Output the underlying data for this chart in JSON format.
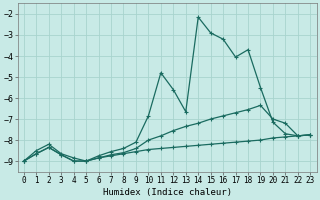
{
  "xlabel": "Humidex (Indice chaleur)",
  "background_color": "#c8eae6",
  "grid_color": "#a8d4ce",
  "line_color": "#1a6b60",
  "xlim": [
    -0.5,
    23.5
  ],
  "ylim": [
    -9.5,
    -1.5
  ],
  "yticks": [
    -9,
    -8,
    -7,
    -6,
    -5,
    -4,
    -3,
    -2
  ],
  "xticks": [
    0,
    1,
    2,
    3,
    4,
    5,
    6,
    7,
    8,
    9,
    10,
    11,
    12,
    13,
    14,
    15,
    16,
    17,
    18,
    19,
    20,
    21,
    22,
    23
  ],
  "series": [
    {
      "x": [
        0,
        1,
        2,
        3,
        4,
        5,
        6,
        7,
        8,
        9,
        10,
        11,
        12,
        13,
        14,
        15,
        16,
        17,
        18,
        19,
        20,
        21,
        22,
        23
      ],
      "y": [
        -9.0,
        -8.65,
        -8.35,
        -8.7,
        -9.0,
        -9.0,
        -8.85,
        -8.75,
        -8.65,
        -8.55,
        -8.45,
        -8.4,
        -8.35,
        -8.3,
        -8.25,
        -8.2,
        -8.15,
        -8.1,
        -8.05,
        -8.0,
        -7.9,
        -7.85,
        -7.8,
        -7.75
      ]
    },
    {
      "x": [
        0,
        1,
        2,
        3,
        4,
        5,
        6,
        7,
        8,
        9,
        10,
        11,
        12,
        13,
        14,
        15,
        16,
        17,
        18,
        19,
        20,
        21,
        22,
        23
      ],
      "y": [
        -9.0,
        -8.65,
        -8.35,
        -8.7,
        -9.0,
        -9.0,
        -8.85,
        -8.7,
        -8.6,
        -8.4,
        -8.0,
        -7.8,
        -7.55,
        -7.35,
        -7.2,
        -7.0,
        -6.85,
        -6.7,
        -6.55,
        -6.35,
        -7.0,
        -7.2,
        -7.8,
        -7.75
      ]
    },
    {
      "x": [
        0,
        1,
        2,
        3,
        4,
        5,
        6,
        7,
        8,
        9,
        10,
        11,
        12,
        13,
        14,
        15,
        16,
        17,
        18,
        19,
        20,
        21,
        22,
        23
      ],
      "y": [
        -9.0,
        -8.5,
        -8.2,
        -8.65,
        -8.85,
        -9.0,
        -8.75,
        -8.55,
        -8.4,
        -8.1,
        -6.85,
        -4.8,
        -5.6,
        -6.65,
        -2.15,
        -2.9,
        -3.2,
        -4.05,
        -3.7,
        -5.5,
        -7.15,
        -7.7,
        -7.8,
        -7.75
      ]
    }
  ]
}
